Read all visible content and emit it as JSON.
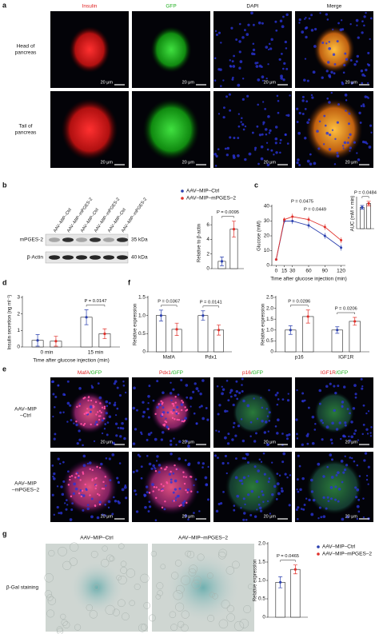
{
  "panel_labels": [
    "a",
    "b",
    "c",
    "d",
    "e",
    "f",
    "g"
  ],
  "scale_bar": "20 μm",
  "panel_a": {
    "columns": [
      "Insulin",
      "GFP",
      "DAPI",
      "Merge"
    ],
    "rows": [
      [
        "Head of",
        "pancreas"
      ],
      [
        "Tail of",
        "pancreas"
      ]
    ]
  },
  "blot": {
    "lanes": [
      "AAV–MIP–Ctrl",
      "AAV–MIP–mPGES-2",
      "AAV–MIP–Ctrl",
      "AAV–MIP–mPGES-2",
      "AAV–MIP–Ctrl",
      "AAV–MIP–mPGES-2"
    ],
    "rows": [
      "mPGES-2",
      "β-Actin"
    ],
    "markers": [
      "35 kDa",
      "40 kDa"
    ]
  },
  "panel_e": {
    "columns": [
      [
        "MafA",
        "/GFP"
      ],
      [
        "Pdx1",
        "/GFP"
      ],
      [
        "p16",
        "/GFP"
      ],
      [
        "IGF1R",
        "/GFP"
      ]
    ],
    "rows": [
      [
        "AAV–MIP",
        "–Ctrl"
      ],
      [
        "AAV–MIP",
        "–mPGES–2"
      ]
    ]
  },
  "panel_g": {
    "columns": [
      "AAV–MIP–Ctrl",
      "AAV–MIP–mPGES–2"
    ],
    "row": "β-Gal staining"
  },
  "chart_data": [
    {
      "type": "bar",
      "ylabel": "Relative to β-actin",
      "categories": [
        null
      ],
      "series": [
        {
          "name": "AAV–MIP–Ctrl",
          "color": "#2a3fae",
          "values": [
            1.0
          ],
          "errors": [
            0.6
          ]
        },
        {
          "name": "AAV–MIP–mPGES–2",
          "color": "#e0302a",
          "values": [
            5.4
          ],
          "errors": [
            1.1
          ]
        }
      ],
      "ylim": [
        0,
        7
      ],
      "yticks": [
        0,
        2,
        4,
        6
      ],
      "annotations": [
        "P = 0.0095"
      ]
    },
    {
      "type": "line",
      "xlabel": "Time after glucose injection (min)",
      "ylabel": "Glucose (mM)",
      "x": [
        0,
        15,
        30,
        60,
        90,
        120
      ],
      "xlim": [
        -8,
        128
      ],
      "xticks": [
        0,
        15,
        30,
        60,
        90,
        120
      ],
      "series": [
        {
          "color": "#2a3fae",
          "values": [
            4,
            30,
            30,
            27,
            20,
            12
          ],
          "errors": [
            0.5,
            1.5,
            2,
            2,
            2,
            2
          ]
        },
        {
          "color": "#e0302a",
          "values": [
            4,
            31,
            33,
            31,
            26,
            17
          ],
          "errors": [
            0.5,
            1.5,
            2,
            2,
            2,
            2
          ]
        }
      ],
      "ylim": [
        0,
        40
      ],
      "yticks": [
        0,
        10,
        20,
        30,
        40
      ],
      "annotations": [
        "P = 0.0475",
        "P = 0.0449"
      ]
    },
    {
      "type": "bar",
      "ylabel": "AUC (mM × min)",
      "categories": [
        null
      ],
      "series": [
        {
          "color": "#2a3fae",
          "values": [
            2800
          ],
          "errors": [
            250
          ]
        },
        {
          "color": "#e0302a",
          "values": [
            3300
          ],
          "errors": [
            300
          ]
        }
      ],
      "ylim": [
        0,
        4000
      ],
      "annotations": [
        "P = 0.0484"
      ]
    },
    {
      "type": "bar",
      "xlabel": "Time after glucose injection (min)",
      "ylabel": "Insulin secretion (ng ml⁻¹)",
      "categories": [
        "0 min",
        "15 min"
      ],
      "series": [
        {
          "color": "#2a3fae",
          "values": [
            0.4,
            1.8
          ],
          "errors": [
            0.35,
            0.45
          ]
        },
        {
          "color": "#e0302a",
          "values": [
            0.35,
            0.8
          ],
          "errors": [
            0.3,
            0.3
          ]
        }
      ],
      "ylim": [
        0,
        3
      ],
      "yticks": [
        0,
        1,
        2,
        3
      ],
      "annotations": [
        "P = 0.0147"
      ]
    },
    {
      "type": "bar",
      "ylabel": "Relative expression",
      "categories": [
        "MafA",
        "Pdx1"
      ],
      "series": [
        {
          "color": "#2a3fae",
          "values": [
            1.0,
            1.0
          ],
          "errors": [
            0.15,
            0.13
          ]
        },
        {
          "color": "#e0302a",
          "values": [
            0.62,
            0.6
          ],
          "errors": [
            0.17,
            0.14
          ]
        }
      ],
      "ylim": [
        0,
        1.5
      ],
      "yticks": [
        0,
        0.5,
        {
          "value": 1,
          "label": "1.0"
        },
        1.5
      ],
      "annotations": [
        "P = 0.0367",
        "P = 0.0141"
      ]
    },
    {
      "type": "bar",
      "ylabel": "Relative expression",
      "categories": [
        "p16",
        "IGF1R"
      ],
      "series": [
        {
          "color": "#2a3fae",
          "values": [
            1.0,
            1.0
          ],
          "errors": [
            0.2,
            0.15
          ]
        },
        {
          "color": "#e0302a",
          "values": [
            1.62,
            1.4
          ],
          "errors": [
            0.3,
            0.18
          ]
        }
      ],
      "ylim": [
        0,
        2.5
      ],
      "yticks": [
        0,
        0.5,
        {
          "value": 1,
          "label": "1.0"
        },
        1.5,
        {
          "value": 2,
          "label": "2.0"
        },
        2.5
      ],
      "annotations": [
        "P = 0.0286",
        "P = 0.0206"
      ]
    },
    {
      "type": "bar",
      "ylabel": "Relative expression",
      "categories": [
        null
      ],
      "series": [
        {
          "name": "AAV–MIP–Ctrl",
          "color": "#2a3fae",
          "values": [
            0.95
          ],
          "errors": [
            0.15
          ]
        },
        {
          "name": "AAV–MIP–mPGES–2",
          "color": "#e0302a",
          "values": [
            1.3
          ],
          "errors": [
            0.12
          ]
        }
      ],
      "ylim": [
        0,
        2
      ],
      "yticks": [
        0,
        0.5,
        {
          "value": 1,
          "label": "1.0"
        },
        1.5,
        {
          "value": 2,
          "label": "2.0"
        }
      ],
      "annotations": [
        "P = 0.0465"
      ]
    }
  ]
}
